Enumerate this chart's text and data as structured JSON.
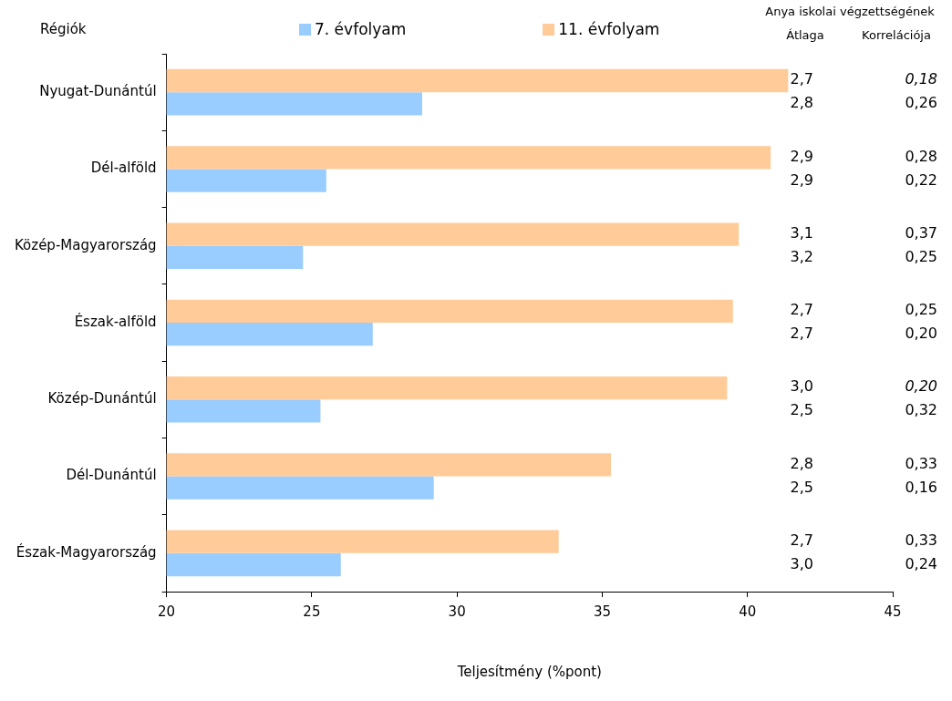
{
  "chart_data": {
    "type": "bar",
    "orientation": "horizontal",
    "ylabel": "Régiók",
    "xlabel": "Teljesítmény (%pont)",
    "categories": [
      "Nyugat-Dunántúl",
      "Dél-alföld",
      "Közép-Magyarország",
      "Észak-alföld",
      "Közép-Dunántúl",
      "Dél-Dunántúl",
      "Észak-Magyarország"
    ],
    "series": [
      {
        "name": "7. évfolyam",
        "color": "#99ccff",
        "values": [
          28.8,
          25.5,
          24.7,
          27.1,
          25.3,
          29.2,
          26.0
        ]
      },
      {
        "name": "11. évfolyam",
        "color": "#ffcc99",
        "values": [
          41.4,
          40.8,
          39.7,
          39.5,
          39.3,
          35.3,
          33.5
        ]
      }
    ],
    "xlim": [
      20,
      45
    ],
    "xticks": [
      20,
      25,
      30,
      35,
      40,
      45
    ],
    "legend": "top",
    "grid": false,
    "annotations": [
      "Anya iskolai végzettségének",
      "Átlaga",
      "Korrelációja",
      "2,7",
      "0,18",
      "2,8",
      "0,26",
      "2,9",
      "0,28",
      "2,9",
      "0,22",
      "3,1",
      "0,37",
      "3,2",
      "0,25",
      "2,7",
      "0,25",
      "2,7",
      "0,20",
      "3,0",
      "0,20",
      "2,5",
      "0,32",
      "2,8",
      "0,33",
      "2,5",
      "0,16",
      "2,7",
      "0,33",
      "3,0",
      "0,24"
    ]
  }
}
